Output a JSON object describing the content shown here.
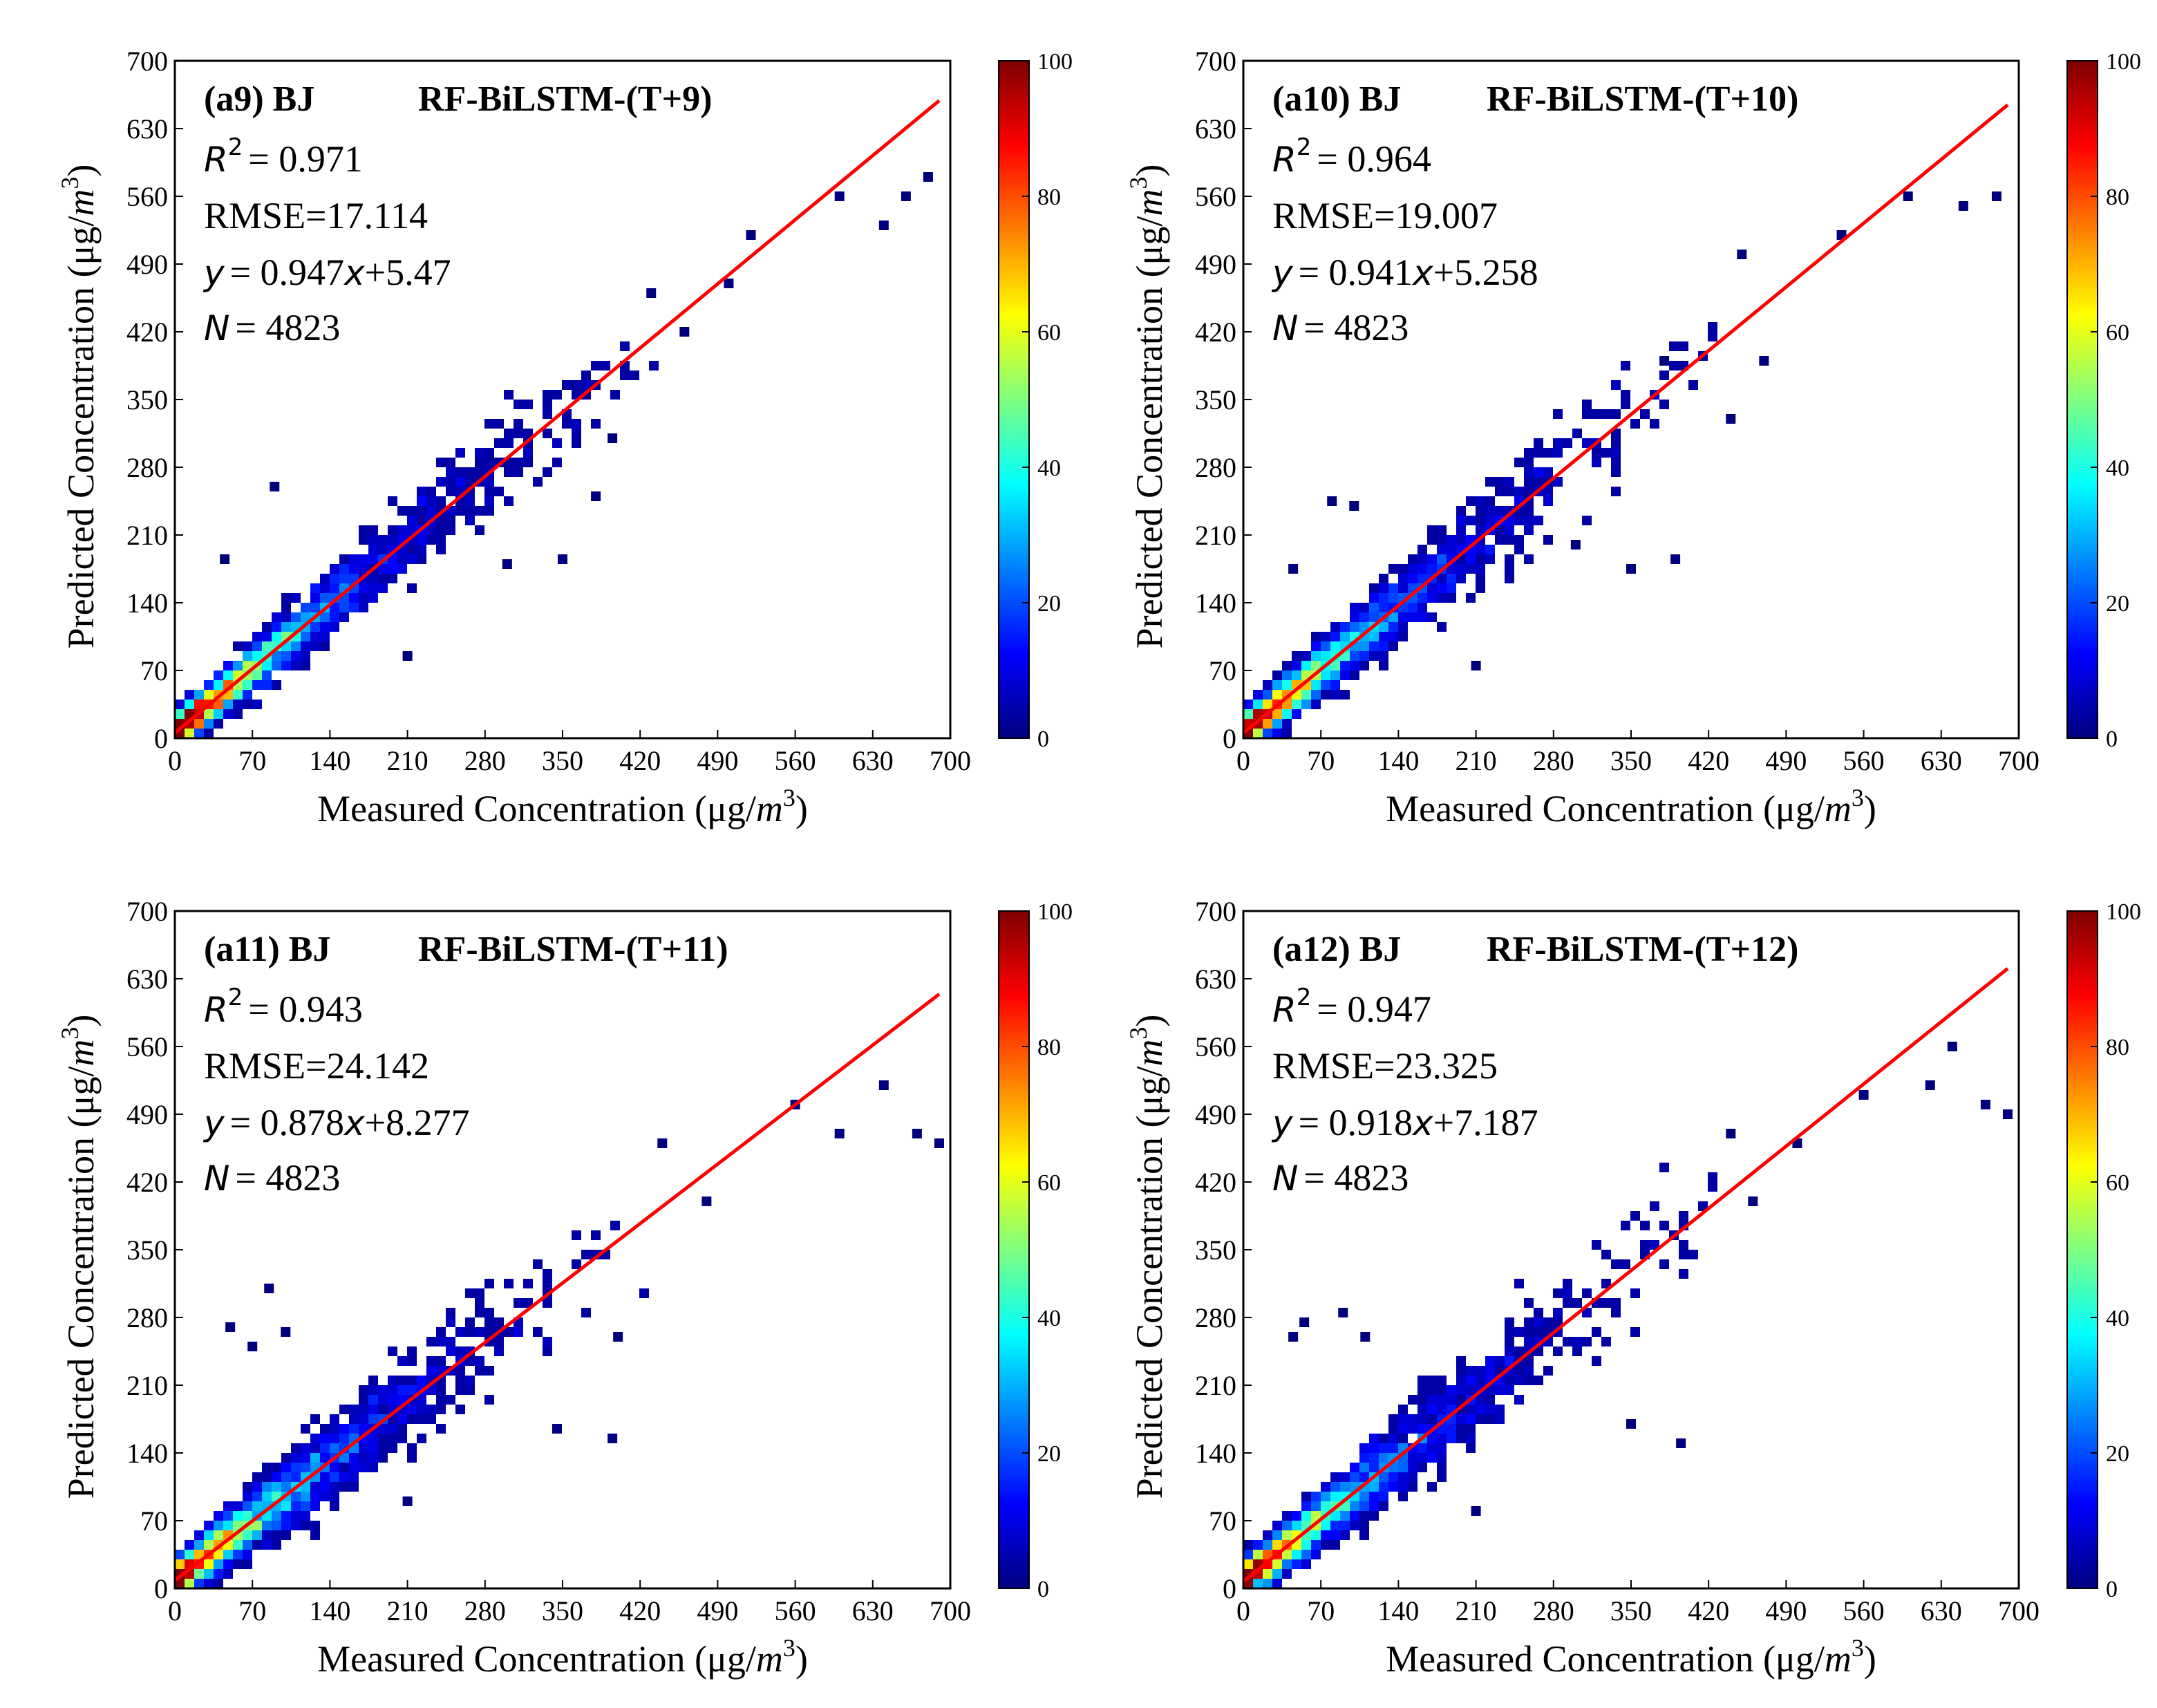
{
  "colormap": [
    "#00007f",
    "#0000ff",
    "#007fff",
    "#00ffff",
    "#7fff7f",
    "#ffff00",
    "#ff7f00",
    "#ff0000",
    "#7f0000"
  ],
  "fit_line_color": "#ff0000",
  "chart_data": [
    {
      "type": "scatter",
      "panel": "(a9) BJ",
      "title": "RF-BiLSTM-(T+9)",
      "xlabel": "Measured Concentration (μg/m³)",
      "ylabel": "Predicted Concentration (μg/m³)",
      "xlim": [
        0,
        700
      ],
      "ylim": [
        0,
        700
      ],
      "xticks": [
        "0",
        "70",
        "140",
        "210",
        "280",
        "350",
        "420",
        "490",
        "560",
        "630",
        "700"
      ],
      "yticks": [
        "0",
        "70",
        "140",
        "210",
        "280",
        "350",
        "420",
        "490",
        "560",
        "630",
        "700"
      ],
      "r2_value": "= 0.971",
      "rmse_text": "RMSE=17.114",
      "eq_slope": "= 0.947",
      "eq_intercept": "+5.47",
      "n_value": "= 4823",
      "slope": 0.947,
      "intercept": 5.47,
      "fit_x_range": [
        0,
        690
      ],
      "colorbar": {
        "min": 0,
        "max": 100,
        "ticks": [
          "0",
          "20",
          "40",
          "60",
          "80",
          "100"
        ]
      },
      "spread": 20,
      "outliers": [
        [
          45,
          185
        ],
        [
          90,
          260
        ],
        [
          350,
          185
        ],
        [
          210,
          85
        ],
        [
          430,
          460
        ],
        [
          520,
          520
        ],
        [
          600,
          560
        ],
        [
          640,
          530
        ],
        [
          660,
          560
        ],
        [
          680,
          580
        ],
        [
          500,
          470
        ],
        [
          460,
          420
        ],
        [
          380,
          250
        ],
        [
          395,
          310
        ],
        [
          300,
          180
        ]
      ]
    },
    {
      "type": "scatter",
      "panel": "(a10) BJ",
      "title": "RF-BiLSTM-(T+10)",
      "xlabel": "Measured Concentration (μg/m³)",
      "ylabel": "Predicted Concentration (μg/m³)",
      "xlim": [
        0,
        700
      ],
      "ylim": [
        0,
        700
      ],
      "xticks": [
        "0",
        "70",
        "140",
        "210",
        "280",
        "350",
        "420",
        "490",
        "560",
        "630",
        "700"
      ],
      "yticks": [
        "0",
        "70",
        "140",
        "210",
        "280",
        "350",
        "420",
        "490",
        "560",
        "630",
        "700"
      ],
      "r2_value": "= 0.964",
      "rmse_text": "RMSE=19.007",
      "eq_slope": "= 0.941",
      "eq_intercept": "+5.258",
      "n_value": "= 4823",
      "slope": 0.941,
      "intercept": 5.258,
      "fit_x_range": [
        0,
        690
      ],
      "colorbar": {
        "min": 0,
        "max": 100,
        "ticks": [
          "0",
          "20",
          "40",
          "60",
          "80",
          "100"
        ]
      },
      "spread": 22,
      "outliers": [
        [
          80,
          245
        ],
        [
          100,
          240
        ],
        [
          45,
          175
        ],
        [
          210,
          75
        ],
        [
          350,
          175
        ],
        [
          390,
          185
        ],
        [
          450,
          500
        ],
        [
          470,
          390
        ],
        [
          540,
          520
        ],
        [
          600,
          560
        ],
        [
          650,
          550
        ],
        [
          680,
          560
        ],
        [
          440,
          330
        ],
        [
          380,
          390
        ],
        [
          300,
          200
        ]
      ]
    },
    {
      "type": "scatter",
      "panel": "(a11) BJ",
      "title": "RF-BiLSTM-(T+11)",
      "xlabel": "Measured Concentration (μg/m³)",
      "ylabel": "Predicted Concentration (μg/m³)",
      "xlim": [
        0,
        700
      ],
      "ylim": [
        0,
        700
      ],
      "xticks": [
        "0",
        "70",
        "140",
        "210",
        "280",
        "350",
        "420",
        "490",
        "560",
        "630",
        "700"
      ],
      "yticks": [
        "0",
        "70",
        "140",
        "210",
        "280",
        "350",
        "420",
        "490",
        "560",
        "630",
        "700"
      ],
      "r2_value": "= 0.943",
      "rmse_text": "RMSE=24.142",
      "eq_slope": "= 0.878",
      "eq_intercept": "+8.277",
      "n_value": "= 4823",
      "slope": 0.878,
      "intercept": 8.277,
      "fit_x_range": [
        0,
        690
      ],
      "colorbar": {
        "min": 0,
        "max": 100,
        "ticks": [
          "0",
          "20",
          "40",
          "60",
          "80",
          "100"
        ]
      },
      "spread": 24,
      "outliers": [
        [
          50,
          270
        ],
        [
          70,
          250
        ],
        [
          85,
          310
        ],
        [
          100,
          265
        ],
        [
          210,
          90
        ],
        [
          345,
          165
        ],
        [
          395,
          155
        ],
        [
          440,
          460
        ],
        [
          480,
          400
        ],
        [
          560,
          500
        ],
        [
          600,
          470
        ],
        [
          640,
          520
        ],
        [
          670,
          470
        ],
        [
          690,
          460
        ],
        [
          400,
          260
        ]
      ]
    },
    {
      "type": "scatter",
      "panel": "(a12) BJ",
      "title": "RF-BiLSTM-(T+12)",
      "xlabel": "Measured Concentration (μg/m³)",
      "ylabel": "Predicted Concentration (μg/m³)",
      "xlim": [
        0,
        700
      ],
      "ylim": [
        0,
        700
      ],
      "xticks": [
        "0",
        "70",
        "140",
        "210",
        "280",
        "350",
        "420",
        "490",
        "560",
        "630",
        "700"
      ],
      "yticks": [
        "0",
        "70",
        "140",
        "210",
        "280",
        "350",
        "420",
        "490",
        "560",
        "630",
        "700"
      ],
      "r2_value": "= 0.947",
      "rmse_text": "RMSE=23.325",
      "eq_slope": "= 0.918",
      "eq_intercept": "+7.187",
      "n_value": "= 4823",
      "slope": 0.918,
      "intercept": 7.187,
      "fit_x_range": [
        0,
        690
      ],
      "colorbar": {
        "min": 0,
        "max": 100,
        "ticks": [
          "0",
          "20",
          "40",
          "60",
          "80",
          "100"
        ]
      },
      "spread": 23,
      "outliers": [
        [
          45,
          260
        ],
        [
          55,
          275
        ],
        [
          90,
          285
        ],
        [
          110,
          260
        ],
        [
          210,
          80
        ],
        [
          350,
          170
        ],
        [
          395,
          150
        ],
        [
          440,
          470
        ],
        [
          500,
          460
        ],
        [
          560,
          510
        ],
        [
          620,
          520
        ],
        [
          640,
          560
        ],
        [
          670,
          500
        ],
        [
          690,
          490
        ],
        [
          460,
          400
        ]
      ]
    }
  ]
}
